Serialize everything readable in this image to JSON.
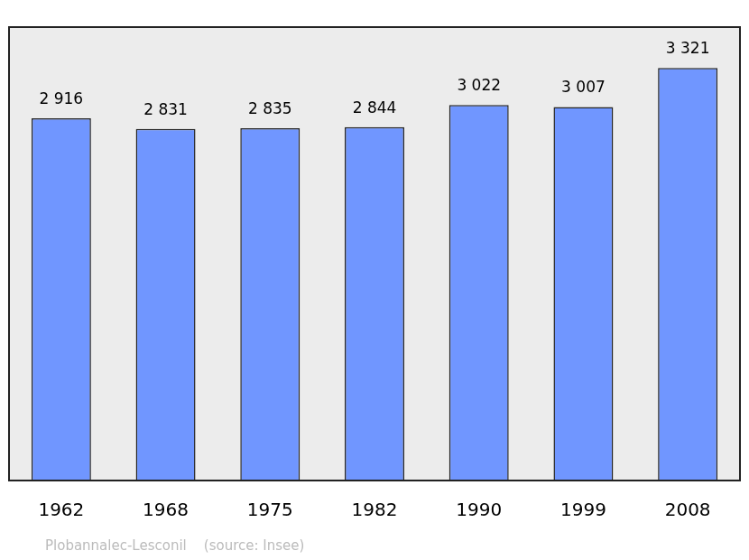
{
  "chart_data": {
    "type": "bar",
    "categories": [
      "1962",
      "1968",
      "1975",
      "1982",
      "1990",
      "1999",
      "2008"
    ],
    "values": [
      2916,
      2831,
      2835,
      2844,
      3022,
      3007,
      3321
    ],
    "value_labels": [
      "2 916",
      "2 831",
      "2 835",
      "2 844",
      "3 022",
      "3 007",
      "3 321"
    ],
    "data_labels": true,
    "color": "#7096ff",
    "ylim": [
      0,
      3650
    ],
    "grid": false,
    "tick_labels": "x",
    "annotation": "Plobannalec-Lesconil    (source: Insee)"
  }
}
